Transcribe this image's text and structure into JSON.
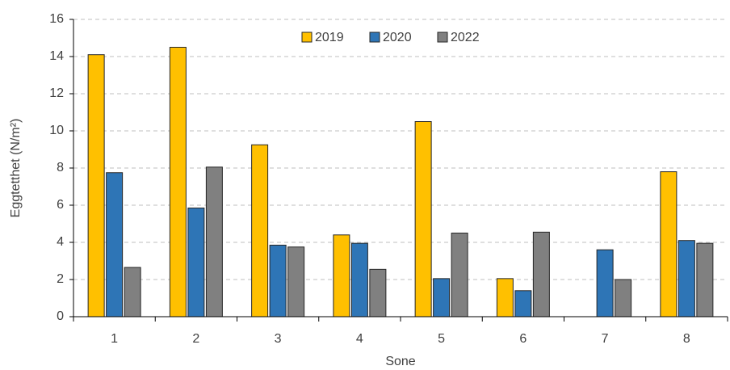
{
  "chart_data": {
    "type": "bar",
    "x_label": "Sone",
    "y_label": "Eggtetthet (N/m²)",
    "categories": [
      "1",
      "2",
      "3",
      "4",
      "5",
      "6",
      "7",
      "8"
    ],
    "series": [
      {
        "name": "2019",
        "color": "#ffc000",
        "values": [
          14.1,
          14.5,
          9.25,
          4.4,
          10.5,
          2.05,
          null,
          7.8
        ]
      },
      {
        "name": "2020",
        "color": "#2e75b6",
        "values": [
          7.75,
          5.85,
          3.85,
          3.95,
          2.05,
          1.4,
          3.6,
          4.1
        ]
      },
      {
        "name": "2022",
        "color": "#808080",
        "values": [
          2.65,
          8.05,
          3.75,
          2.55,
          4.5,
          4.55,
          2.0,
          3.95
        ]
      }
    ],
    "ylim": [
      0,
      16
    ],
    "yticks": [
      0,
      2,
      4,
      6,
      8,
      10,
      12,
      14,
      16
    ],
    "grid": true,
    "legend": "top"
  }
}
